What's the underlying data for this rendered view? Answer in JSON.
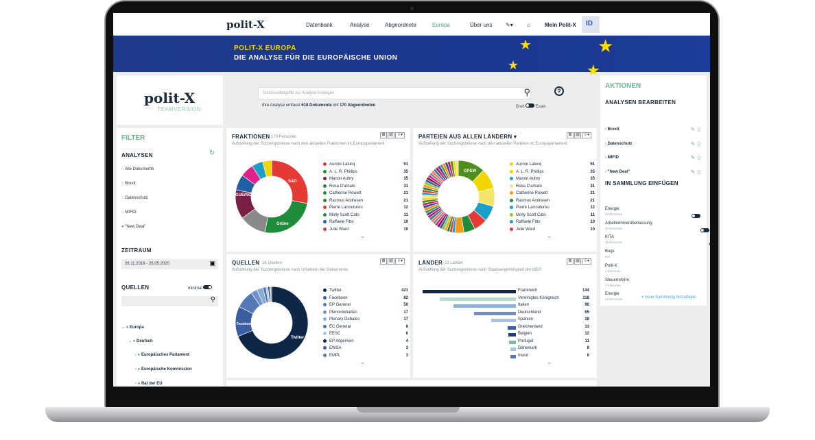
{
  "nav": {
    "logo": "polit-X",
    "items": [
      "Datenbank",
      "Analyse",
      "Abgeordnete",
      "Europa",
      "Über uns"
    ],
    "user": "Mein Polit-X",
    "id_icon": "ID"
  },
  "banner": {
    "title": "POLIT-X EUROPA",
    "subtitle": "DIE ANALYSE FÜR DIE EUROPÄISCHE UNION"
  },
  "brand": {
    "logo": "polit-X",
    "edition": "TEAMVERSION"
  },
  "search": {
    "placeholder": "Schlüsselbegriffe zur Analyse festlegen",
    "info_prefix": "Ihre Analyse umfasst",
    "info_docs": "618 Dokumente",
    "info_mid": "mit",
    "info_mep": "170 Abgeordneten",
    "mode_left": "Breit",
    "mode_right": "Exakt"
  },
  "filter": {
    "title": "FILTER",
    "analysen_title": "ANALYSEN",
    "analysen": [
      "Alle Dokumente",
      "Brexit",
      "Datenschutz",
      "MIFID",
      "\"New Deal\""
    ],
    "zeitraum_title": "ZEITRAUM",
    "zeitraum": "26.11.2019 - 26.05.2020",
    "quellen_title": "QUELLEN",
    "quellen_toggle": "minimal",
    "tree": [
      "Europa",
      "Deutsch",
      "Europäisches Parlament",
      "Europäische Kommission",
      "Rat der EU"
    ]
  },
  "fraktionen": {
    "title": "FRAKTIONEN",
    "count": "170 Personen",
    "desc": "Aufstellung der Suchergebnisse nach den aktuellen Fraktionen im Europaparlament.",
    "slice_labels": [
      "S&D",
      "Grüne",
      "GUE/NGL"
    ],
    "legend": [
      {
        "name": "Aurore Lalucq",
        "value": "51",
        "color": "#e53935"
      },
      {
        "name": "A. L. R. Phillips",
        "value": "35",
        "color": "#1e8c3a"
      },
      {
        "name": "Manon Aubry",
        "value": "35",
        "color": "#7a1f45"
      },
      {
        "name": "Rosa D'amato",
        "value": "31",
        "color": "#1e8c3a"
      },
      {
        "name": "Catherine Rowett",
        "value": "21",
        "color": "#1e8c3a"
      },
      {
        "name": "Rasmus Andresen",
        "value": "21",
        "color": "#1e8c3a"
      },
      {
        "name": "Pierre Larrouturou",
        "value": "12",
        "color": "#e53935"
      },
      {
        "name": "Molly Scott Cato",
        "value": "11",
        "color": "#1e8c3a"
      },
      {
        "name": "Raffaele Fitto",
        "value": "10",
        "color": "#1e5fa8"
      },
      {
        "name": "Julie Ward",
        "value": "10",
        "color": "#e53935"
      }
    ]
  },
  "parteien": {
    "title": "PARTEIEN AUS ALLEN LÄNDERN",
    "desc": "Aufstellung der Suchergebnisse nach den aktuellen Parteien im Europaparlament.",
    "slice_label": "GPEW",
    "legend": [
      {
        "name": "Aurore Lalucq",
        "value": "51",
        "color": "#f2d600"
      },
      {
        "name": "A. L. R. Phillips",
        "value": "35",
        "color": "#f2d600"
      },
      {
        "name": "Manon Aubry",
        "value": "35",
        "color": "#1aa0c8"
      },
      {
        "name": "Rosa D'amato",
        "value": "31",
        "color": "#f5e46a"
      },
      {
        "name": "Catherine Rowett",
        "value": "21",
        "color": "#f29c1a"
      },
      {
        "name": "Rasmus Andresen",
        "value": "21",
        "color": "#1e8c3a"
      },
      {
        "name": "Pierre Larrouturou",
        "value": "12",
        "color": "#1aa0c8"
      },
      {
        "name": "Molly Scott Cato",
        "value": "11",
        "color": "#9bbf30"
      },
      {
        "name": "Raffaele Fitto",
        "value": "10",
        "color": "#1aa0c8"
      },
      {
        "name": "Julie Ward",
        "value": "10",
        "color": "#e53935"
      }
    ]
  },
  "quellen": {
    "title": "QUELLEN",
    "count": "16 Quellen",
    "desc": "Aufstellung der Suchergebnisse nach Urhebern der Dokumente.",
    "slice_labels": [
      "Twitter",
      "Facebook"
    ],
    "legend": [
      {
        "name": "Twitter",
        "value": "421",
        "color": "#0f2747"
      },
      {
        "name": "Facebook",
        "value": "82",
        "color": "#3b5f9e"
      },
      {
        "name": "EP General",
        "value": "50",
        "color": "#5479b6"
      },
      {
        "name": "Plenordebatten",
        "value": "17",
        "color": "#6e93c9"
      },
      {
        "name": "Plenary Debates",
        "value": "17",
        "color": "#8aabd6"
      },
      {
        "name": "EC General",
        "value": "8",
        "color": "#4a6fa8"
      },
      {
        "name": "EESC",
        "value": "6",
        "color": "#a9c4e6"
      },
      {
        "name": "EP Allgemein",
        "value": "4",
        "color": "#0f2747"
      },
      {
        "name": "EWSA",
        "value": "3",
        "color": "#3b5f9e"
      },
      {
        "name": "EMPL",
        "value": "3",
        "color": "#5479b6"
      }
    ]
  },
  "laender": {
    "title": "LÄNDER",
    "count": "23 Länder",
    "desc": "Aufstellung der Suchergebnisse nach Staatsangehörigkeit der MEP.",
    "bars": [
      {
        "name": "Frankreich",
        "value": 144,
        "color": "#0f2747"
      },
      {
        "name": "Vereinigtes Königreich",
        "value": 118,
        "color": "#b9dccb"
      },
      {
        "name": "Italien",
        "value": 96,
        "color": "#8fb0d8"
      },
      {
        "name": "Deutschland",
        "value": 65,
        "color": "#6f8fc2"
      },
      {
        "name": "Spanien",
        "value": 38,
        "color": "#a9c4e6"
      },
      {
        "name": "Griechenland",
        "value": 13,
        "color": "#3b5fa0"
      },
      {
        "name": "Belgien",
        "value": 12,
        "color": "#1e3d78"
      },
      {
        "name": "Portugal",
        "value": 11,
        "color": "#6fc0a0"
      },
      {
        "name": "Dänemark",
        "value": 8,
        "color": "#a9c4e6"
      },
      {
        "name": "Irland",
        "value": 8,
        "color": "#5479b6"
      }
    ]
  },
  "aktionen": {
    "title": "AKTIONEN",
    "edit_title": "ANALYSEN BEARBEITEN",
    "analysen": [
      "Brexit",
      "Datenschutz",
      "MIFID",
      "\"New Deal\""
    ],
    "sammlung_title": "IN SAMMLUNG EINFÜGEN",
    "sammlungen": [
      {
        "name": "Energie",
        "sub": "26 Elemente"
      },
      {
        "name": "Arbeitnehmerüberlassung",
        "sub": "10 Elemente"
      },
      {
        "name": "KITA",
        "sub": "16 Elemente"
      },
      {
        "name": "Bugs",
        "sub": "leer"
      },
      {
        "name": "Polit-X",
        "sub": "1 Elemente"
      },
      {
        "name": "Steuerreform",
        "sub": "7 Elemente"
      },
      {
        "name": "Energie",
        "sub": "26 Elemente"
      }
    ],
    "add_link": "+ neue Sammlung hinzufügen"
  }
}
